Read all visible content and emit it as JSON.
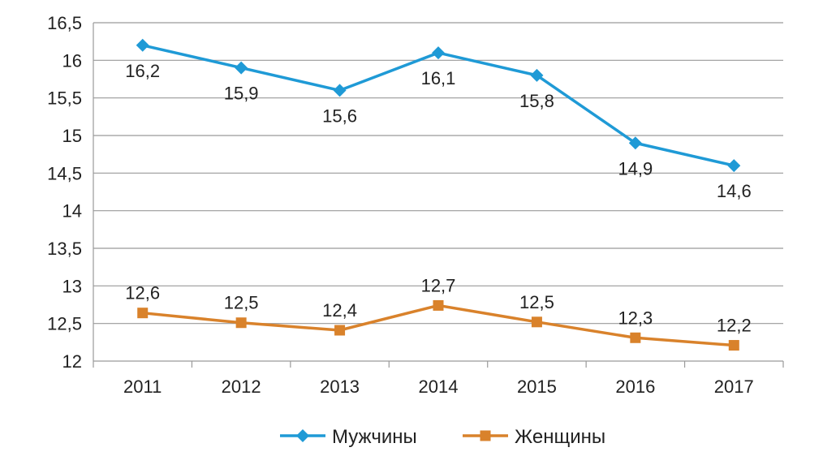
{
  "chart_data": {
    "type": "line",
    "categories": [
      "2011",
      "2012",
      "2013",
      "2014",
      "2015",
      "2016",
      "2017"
    ],
    "y_ticks": [
      "12",
      "12,5",
      "13",
      "13,5",
      "14",
      "14,5",
      "15",
      "15,5",
      "16",
      "16,5"
    ],
    "ylim": [
      12,
      16.5
    ],
    "y_step": 0.5,
    "grid": "horizontal",
    "legend": "bottom",
    "series": [
      {
        "name": "Мужчины",
        "values": [
          16.2,
          15.9,
          15.6,
          16.1,
          15.8,
          14.9,
          14.6
        ],
        "labels": [
          "16,2",
          "15,9",
          "15,6",
          "16,1",
          "15,8",
          "14,9",
          "14,6"
        ],
        "label_position": "below",
        "color": "#1f9ad6",
        "marker": "diamond"
      },
      {
        "name": "Женщины",
        "values": [
          12.64,
          12.51,
          12.41,
          12.74,
          12.52,
          12.31,
          12.21
        ],
        "labels": [
          "12,6",
          "12,5",
          "12,4",
          "12,7",
          "12,5",
          "12,3",
          "12,2"
        ],
        "label_position": "above",
        "color": "#d9822b",
        "marker": "square"
      }
    ]
  }
}
